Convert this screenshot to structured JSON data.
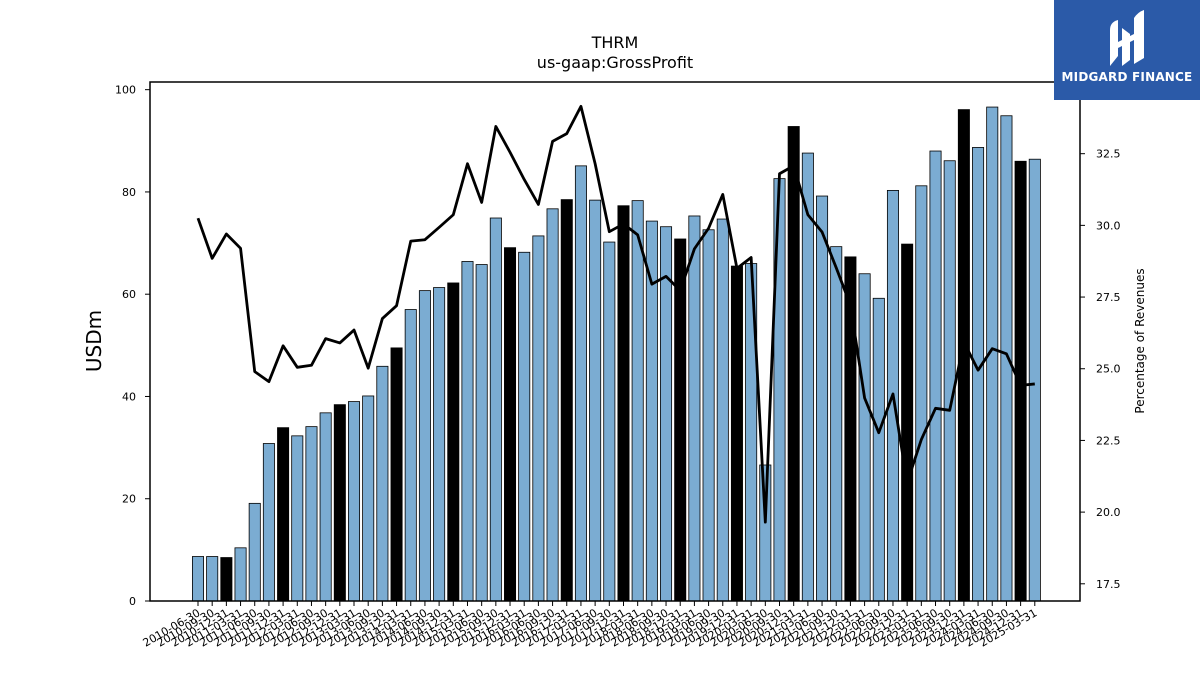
{
  "chart_data": {
    "type": "bar",
    "title": "THRM",
    "subtitle": "us-gaap:GrossProfit",
    "ylabel": "USDm",
    "y2label": "Percentage of Revenues",
    "ylim": [
      0,
      101.5
    ],
    "y2lim": [
      16.9,
      35.0
    ],
    "yticks": [
      0,
      20,
      40,
      60,
      80,
      100
    ],
    "y2ticks": [
      "17.5",
      "20.0",
      "22.5",
      "25.0",
      "27.5",
      "30.0",
      "32.5"
    ],
    "bar_color": "#7bacd2",
    "highlight_color": "#000000",
    "line_color": "#000000",
    "categories": [
      "2010-06-30",
      "2010-09-30",
      "2010-12-31",
      "2011-03-31",
      "2011-06-30",
      "2011-09-30",
      "2011-12-31",
      "2012-03-31",
      "2012-06-30",
      "2012-09-30",
      "2012-12-31",
      "2013-03-31",
      "2013-06-30",
      "2013-09-30",
      "2013-12-31",
      "2014-03-31",
      "2014-06-30",
      "2014-09-30",
      "2014-12-31",
      "2015-03-31",
      "2015-06-30",
      "2015-09-30",
      "2015-12-31",
      "2016-03-31",
      "2016-06-30",
      "2016-09-30",
      "2016-12-31",
      "2017-03-31",
      "2017-06-30",
      "2017-09-30",
      "2017-12-31",
      "2018-03-31",
      "2018-06-30",
      "2018-09-30",
      "2018-12-31",
      "2019-03-31",
      "2019-06-30",
      "2019-09-30",
      "2019-12-31",
      "2020-03-31",
      "2020-06-30",
      "2020-09-30",
      "2020-12-31",
      "2021-03-31",
      "2021-06-30",
      "2021-09-30",
      "2021-12-31",
      "2022-03-31",
      "2022-06-30",
      "2022-09-30",
      "2022-12-31",
      "2023-03-31",
      "2023-06-30",
      "2023-09-30",
      "2023-12-31",
      "2024-03-31",
      "2024-06-30",
      "2024-09-30",
      "2024-12-31",
      "2025-03-31"
    ],
    "values": [
      8.7,
      8.7,
      8.5,
      10.4,
      19.1,
      30.8,
      33.9,
      32.3,
      34.1,
      36.8,
      38.4,
      39.0,
      40.1,
      45.9,
      49.5,
      57.0,
      60.7,
      61.3,
      62.2,
      66.4,
      65.8,
      74.9,
      69.1,
      68.2,
      71.4,
      76.7,
      78.5,
      85.1,
      78.4,
      70.2,
      77.3,
      78.3,
      74.3,
      73.2,
      70.8,
      75.3,
      72.6,
      74.7,
      65.5,
      66.0,
      26.6,
      82.6,
      92.8,
      87.6,
      79.2,
      69.3,
      67.3,
      64.0,
      59.2,
      80.3,
      69.8,
      81.2,
      88.0,
      86.1,
      96.1,
      88.7,
      96.6,
      94.9,
      86.0,
      86.4
    ],
    "highlight": [
      false,
      false,
      true,
      false,
      false,
      false,
      true,
      false,
      false,
      false,
      true,
      false,
      false,
      false,
      true,
      false,
      false,
      false,
      true,
      false,
      false,
      false,
      true,
      false,
      false,
      false,
      true,
      false,
      false,
      false,
      true,
      false,
      false,
      false,
      true,
      false,
      false,
      false,
      true,
      false,
      false,
      false,
      true,
      false,
      false,
      false,
      true,
      false,
      false,
      false,
      true,
      false,
      false,
      false,
      true,
      false,
      false,
      false,
      true,
      false
    ],
    "series": [
      {
        "type": "line",
        "axis": "right",
        "values": [
          30.25,
          28.85,
          29.7,
          29.2,
          24.9,
          24.55,
          25.8,
          25.05,
          25.12,
          26.05,
          25.9,
          26.35,
          25.02,
          26.75,
          27.2,
          29.45,
          29.5,
          29.93,
          30.37,
          32.15,
          30.8,
          33.45,
          32.55,
          31.6,
          30.73,
          32.93,
          33.2,
          34.15,
          32.15,
          29.78,
          30.05,
          29.67,
          27.95,
          28.22,
          27.73,
          29.18,
          29.9,
          31.08,
          28.5,
          28.88,
          19.65,
          31.8,
          32.08,
          30.37,
          29.77,
          28.52,
          27.22,
          23.98,
          22.77,
          24.12,
          21.03,
          22.53,
          23.62,
          23.55,
          25.93,
          24.95,
          25.7,
          25.52,
          24.42,
          24.47
        ]
      }
    ]
  },
  "branding": {
    "name": "MIDGARD FINANCE",
    "icon": "midgard-logo-icon"
  }
}
